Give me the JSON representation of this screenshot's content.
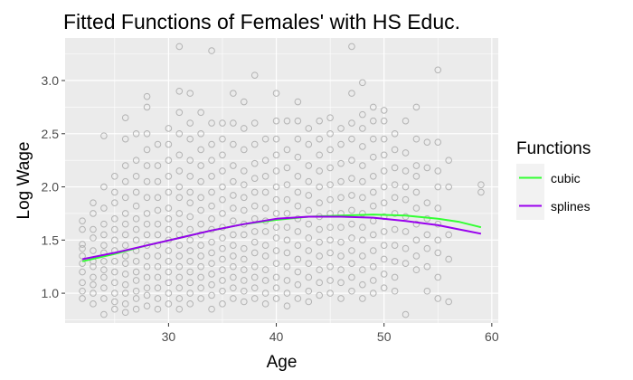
{
  "chart_data": {
    "type": "scatter",
    "title": "Fitted Functions of Females' with HS Educ.",
    "xlabel": "Age",
    "ylabel": "Log Wage",
    "xlim": [
      20.4,
      60.6
    ],
    "ylim": [
      0.72,
      3.4
    ],
    "x_ticks": [
      30,
      40,
      50,
      60
    ],
    "x_tick_labels": [
      "30",
      "40",
      "50",
      "60"
    ],
    "y_ticks": [
      1.0,
      1.5,
      2.0,
      2.5,
      3.0
    ],
    "y_tick_labels": [
      "1.0",
      "1.5",
      "2.0",
      "2.5",
      "3.0"
    ],
    "grid": true,
    "background": "#ebebeb",
    "point_color": "#b3b3b3",
    "legend": {
      "title": "Functions",
      "position": "right",
      "entries": [
        "cubic",
        "splines"
      ]
    },
    "points_note": "Scatter is dense (~1500 points); stored as per-age observed values.",
    "points": [
      {
        "age": 22,
        "y": [
          0.95,
          1.02,
          1.1,
          1.2,
          1.28,
          1.35,
          1.42,
          1.46,
          1.6,
          1.68
        ]
      },
      {
        "age": 23,
        "y": [
          0.9,
          1.0,
          1.08,
          1.15,
          1.25,
          1.3,
          1.4,
          1.52,
          1.6,
          1.75,
          1.85
        ]
      },
      {
        "age": 24,
        "y": [
          0.8,
          0.95,
          1.05,
          1.15,
          1.22,
          1.3,
          1.38,
          1.45,
          1.55,
          1.65,
          1.8,
          2.0,
          2.48
        ]
      },
      {
        "age": 25,
        "y": [
          0.85,
          0.92,
          1.0,
          1.1,
          1.2,
          1.3,
          1.4,
          1.5,
          1.6,
          1.7,
          1.85,
          1.95,
          2.1
        ]
      },
      {
        "age": 26,
        "y": [
          0.82,
          0.9,
          1.0,
          1.08,
          1.18,
          1.28,
          1.35,
          1.45,
          1.55,
          1.65,
          1.75,
          1.9,
          2.05,
          2.2,
          2.45,
          2.65
        ]
      },
      {
        "age": 27,
        "y": [
          0.85,
          0.95,
          1.02,
          1.12,
          1.2,
          1.3,
          1.4,
          1.5,
          1.6,
          1.7,
          1.82,
          1.95,
          2.1,
          2.25,
          2.5
        ]
      },
      {
        "age": 28,
        "y": [
          0.88,
          0.98,
          1.05,
          1.15,
          1.25,
          1.35,
          1.45,
          1.55,
          1.65,
          1.75,
          1.9,
          2.05,
          2.2,
          2.35,
          2.5,
          2.75,
          2.85
        ]
      },
      {
        "age": 29,
        "y": [
          0.85,
          0.95,
          1.05,
          1.15,
          1.25,
          1.35,
          1.45,
          1.55,
          1.65,
          1.78,
          1.9,
          2.05,
          2.2,
          2.4
        ]
      },
      {
        "age": 30,
        "y": [
          0.9,
          1.0,
          1.1,
          1.2,
          1.3,
          1.4,
          1.5,
          1.6,
          1.7,
          1.8,
          1.95,
          2.1,
          2.25,
          2.4,
          2.55
        ]
      },
      {
        "age": 31,
        "y": [
          0.85,
          0.95,
          1.05,
          1.15,
          1.25,
          1.35,
          1.45,
          1.55,
          1.65,
          1.75,
          1.9,
          2.0,
          2.15,
          2.3,
          2.5,
          2.7,
          2.9,
          3.32
        ]
      },
      {
        "age": 32,
        "y": [
          0.9,
          1.0,
          1.1,
          1.2,
          1.3,
          1.4,
          1.5,
          1.6,
          1.72,
          1.85,
          1.95,
          2.1,
          2.25,
          2.45,
          2.6,
          2.88
        ]
      },
      {
        "age": 33,
        "y": [
          0.95,
          1.05,
          1.15,
          1.25,
          1.35,
          1.45,
          1.55,
          1.65,
          1.78,
          1.9,
          2.05,
          2.2,
          2.35,
          2.5,
          2.7
        ]
      },
      {
        "age": 34,
        "y": [
          0.85,
          0.98,
          1.08,
          1.18,
          1.28,
          1.38,
          1.48,
          1.6,
          1.7,
          1.82,
          1.95,
          2.1,
          2.25,
          2.4,
          2.6,
          3.28
        ]
      },
      {
        "age": 35,
        "y": [
          0.9,
          1.02,
          1.12,
          1.22,
          1.32,
          1.42,
          1.52,
          1.62,
          1.75,
          1.88,
          2.0,
          2.15,
          2.3,
          2.45,
          2.6
        ]
      },
      {
        "age": 36,
        "y": [
          0.95,
          1.05,
          1.15,
          1.25,
          1.35,
          1.45,
          1.55,
          1.68,
          1.8,
          1.92,
          2.05,
          2.2,
          2.4,
          2.6,
          2.88
        ]
      },
      {
        "age": 37,
        "y": [
          0.92,
          1.02,
          1.12,
          1.22,
          1.32,
          1.42,
          1.55,
          1.65,
          1.78,
          1.9,
          2.02,
          2.15,
          2.35,
          2.55,
          2.8
        ]
      },
      {
        "age": 38,
        "y": [
          0.95,
          1.05,
          1.15,
          1.25,
          1.38,
          1.48,
          1.58,
          1.7,
          1.82,
          1.95,
          2.08,
          2.22,
          2.4,
          2.6,
          3.05
        ]
      },
      {
        "age": 39,
        "y": [
          0.9,
          1.0,
          1.12,
          1.22,
          1.35,
          1.45,
          1.58,
          1.68,
          1.8,
          1.95,
          2.1,
          2.25,
          2.45
        ]
      },
      {
        "age": 40,
        "y": [
          0.95,
          1.05,
          1.15,
          1.28,
          1.4,
          1.52,
          1.62,
          1.75,
          1.88,
          2.0,
          2.15,
          2.3,
          2.45,
          2.62,
          2.88
        ]
      },
      {
        "age": 41,
        "y": [
          0.88,
          1.0,
          1.12,
          1.25,
          1.38,
          1.5,
          1.62,
          1.75,
          1.88,
          2.02,
          2.18,
          2.35,
          2.62
        ]
      },
      {
        "age": 42,
        "y": [
          0.95,
          1.08,
          1.2,
          1.32,
          1.45,
          1.58,
          1.7,
          1.82,
          1.95,
          2.1,
          2.28,
          2.45,
          2.62,
          2.8
        ]
      },
      {
        "age": 43,
        "y": [
          0.92,
          1.02,
          1.15,
          1.28,
          1.4,
          1.52,
          1.65,
          1.78,
          1.92,
          2.05,
          2.2,
          2.4,
          2.55
        ]
      },
      {
        "age": 44,
        "y": [
          0.98,
          1.1,
          1.22,
          1.35,
          1.48,
          1.6,
          1.72,
          1.85,
          2.0,
          2.15,
          2.3,
          2.45,
          2.62
        ]
      },
      {
        "age": 45,
        "y": [
          1.0,
          1.12,
          1.25,
          1.38,
          1.5,
          1.62,
          1.75,
          1.88,
          2.02,
          2.18,
          2.35,
          2.5,
          2.65
        ]
      },
      {
        "age": 46,
        "y": [
          0.95,
          1.1,
          1.22,
          1.35,
          1.48,
          1.62,
          1.75,
          1.9,
          2.05,
          2.22,
          2.4,
          2.55
        ]
      },
      {
        "age": 47,
        "y": [
          1.02,
          1.15,
          1.28,
          1.4,
          1.52,
          1.65,
          1.78,
          1.92,
          2.08,
          2.25,
          2.45,
          2.6,
          2.88,
          3.32
        ]
      },
      {
        "age": 48,
        "y": [
          0.95,
          1.08,
          1.22,
          1.35,
          1.5,
          1.62,
          1.75,
          1.9,
          2.05,
          2.2,
          2.38,
          2.55,
          2.68,
          2.98
        ]
      },
      {
        "age": 49,
        "y": [
          1.0,
          1.12,
          1.25,
          1.4,
          1.55,
          1.68,
          1.82,
          1.95,
          2.1,
          2.28,
          2.45,
          2.62,
          2.75
        ]
      },
      {
        "age": 50,
        "y": [
          1.05,
          1.18,
          1.32,
          1.45,
          1.58,
          1.72,
          1.85,
          2.0,
          2.15,
          2.3,
          2.45,
          2.62,
          2.72
        ]
      },
      {
        "age": 51,
        "y": [
          1.02,
          1.15,
          1.3,
          1.45,
          1.6,
          1.75,
          1.9,
          2.02,
          2.18,
          2.35,
          2.5
        ]
      },
      {
        "age": 52,
        "y": [
          0.8,
          1.28,
          1.42,
          1.58,
          1.72,
          1.88,
          2.0,
          2.15,
          2.32,
          2.62
        ]
      },
      {
        "age": 53,
        "y": [
          1.22,
          1.35,
          1.5,
          1.65,
          1.8,
          1.95,
          2.1,
          2.2,
          2.45,
          2.75
        ]
      },
      {
        "age": 54,
        "y": [
          1.02,
          1.25,
          1.42,
          1.55,
          1.7,
          1.85,
          2.18,
          2.42
        ]
      },
      {
        "age": 55,
        "y": [
          0.95,
          1.15,
          1.38,
          1.5,
          1.65,
          1.8,
          2.0,
          2.15,
          2.42,
          3.1
        ]
      },
      {
        "age": 56,
        "y": [
          0.92,
          1.32,
          1.55,
          2.0,
          2.25
        ]
      },
      {
        "age": 59,
        "y": [
          1.95,
          2.02
        ]
      }
    ],
    "series": [
      {
        "name": "cubic",
        "color": "#33ff33",
        "x": [
          22,
          25,
          28,
          31,
          34,
          37,
          40,
          43,
          46,
          49,
          52,
          55,
          57,
          59
        ],
        "values": [
          1.3,
          1.37,
          1.45,
          1.52,
          1.59,
          1.65,
          1.69,
          1.72,
          1.73,
          1.74,
          1.73,
          1.7,
          1.67,
          1.62
        ]
      },
      {
        "name": "splines",
        "color": "#9900ee",
        "x": [
          22,
          25,
          28,
          31,
          34,
          37,
          40,
          43,
          46,
          49,
          52,
          55,
          57,
          59
        ],
        "values": [
          1.32,
          1.38,
          1.45,
          1.52,
          1.59,
          1.65,
          1.7,
          1.72,
          1.72,
          1.71,
          1.68,
          1.64,
          1.6,
          1.56
        ]
      }
    ]
  }
}
